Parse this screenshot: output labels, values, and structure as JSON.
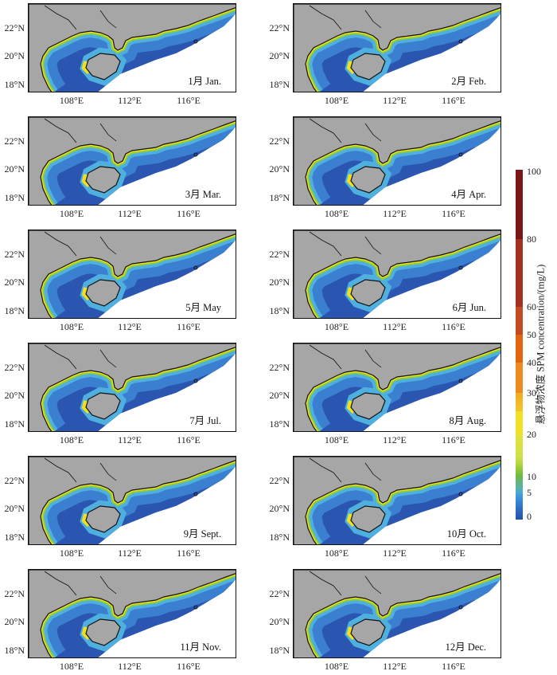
{
  "figure": {
    "lat_labels": [
      "22°N",
      "20°N",
      "18°N"
    ],
    "lon_labels": [
      "108°E",
      "112°E",
      "116°E"
    ],
    "panels": [
      {
        "label": "1月 Jan."
      },
      {
        "label": "2月 Feb."
      },
      {
        "label": "3月 Mar."
      },
      {
        "label": "4月 Apr."
      },
      {
        "label": "5月 May"
      },
      {
        "label": "6月 Jun."
      },
      {
        "label": "7月 Jul."
      },
      {
        "label": "8月 Aug."
      },
      {
        "label": "9月 Sept."
      },
      {
        "label": "10月 Oct."
      },
      {
        "label": "11月 Nov."
      },
      {
        "label": "12月 Dec."
      }
    ],
    "colorbar": {
      "title": "悬浮物浓度 SPM concentration/(mg/L)",
      "ticks": [
        "100",
        "80",
        "60",
        "50",
        "40",
        "30",
        "20",
        "10",
        "5",
        "0"
      ]
    },
    "colors": {
      "land": "#a6a6a6",
      "deep": "#2a55b0",
      "mid": "#3a7fd0",
      "shallow": "#4fb0e0",
      "green": "#8ccc3e",
      "yellow": "#f0e020",
      "orange": "#e86a20"
    }
  }
}
